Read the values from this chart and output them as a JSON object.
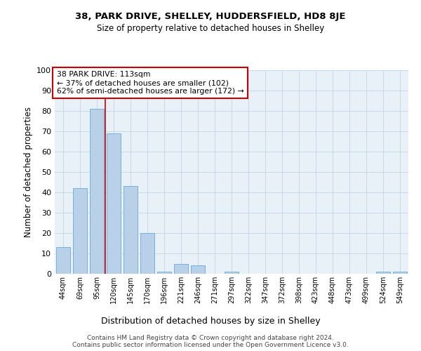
{
  "title1": "38, PARK DRIVE, SHELLEY, HUDDERSFIELD, HD8 8JE",
  "title2": "Size of property relative to detached houses in Shelley",
  "xlabel": "Distribution of detached houses by size in Shelley",
  "ylabel": "Number of detached properties",
  "categories": [
    "44sqm",
    "69sqm",
    "95sqm",
    "120sqm",
    "145sqm",
    "170sqm",
    "196sqm",
    "221sqm",
    "246sqm",
    "271sqm",
    "297sqm",
    "322sqm",
    "347sqm",
    "372sqm",
    "398sqm",
    "423sqm",
    "448sqm",
    "473sqm",
    "499sqm",
    "524sqm",
    "549sqm"
  ],
  "values": [
    13,
    42,
    81,
    69,
    43,
    20,
    1,
    5,
    4,
    0,
    1,
    0,
    0,
    0,
    0,
    0,
    0,
    0,
    0,
    1,
    1
  ],
  "bar_color": "#b8d0e8",
  "bar_edge_color": "#6aaad4",
  "grid_color": "#c8d8ec",
  "background_color": "#e8f0f8",
  "vline_x": 2.5,
  "vline_color": "#cc0000",
  "annotation_lines": [
    "38 PARK DRIVE: 113sqm",
    "← 37% of detached houses are smaller (102)",
    "62% of semi-detached houses are larger (172) →"
  ],
  "annotation_box_color": "#ffffff",
  "annotation_box_edge": "#cc0000",
  "footer1": "Contains HM Land Registry data © Crown copyright and database right 2024.",
  "footer2": "Contains public sector information licensed under the Open Government Licence v3.0.",
  "ylim": [
    0,
    100
  ],
  "yticks": [
    0,
    10,
    20,
    30,
    40,
    50,
    60,
    70,
    80,
    90,
    100
  ]
}
